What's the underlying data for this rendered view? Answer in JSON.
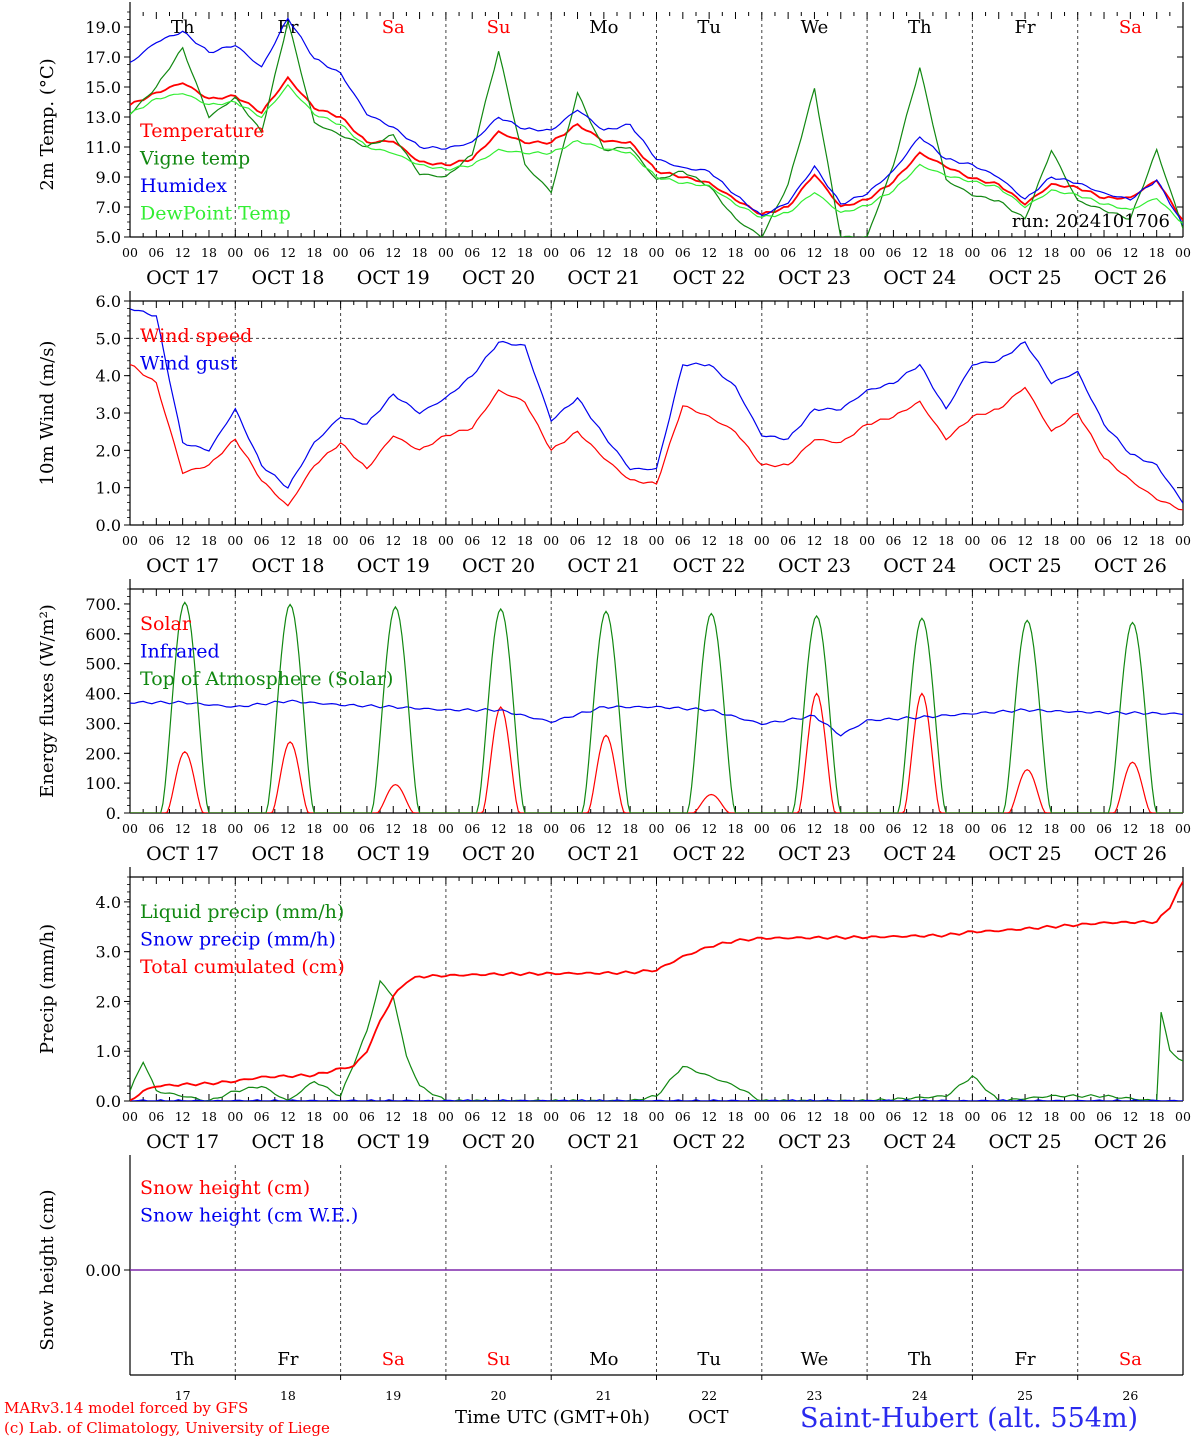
{
  "page": {
    "station": "Saint-Hubert (alt. 554m)",
    "credit_line1": "MARv3.14 model forced by GFS",
    "credit_line2": "(c) Lab. of Climatology, University of Liege",
    "time_axis_label": "Time UTC (GMT+0h)",
    "month_label": "OCT",
    "run_label": "run: 2024101706",
    "hour_ticks": [
      "00",
      "06",
      "12",
      "18"
    ],
    "days": [
      {
        "abbr": "Th",
        "date": "OCT 17",
        "num": "17",
        "weekend": false
      },
      {
        "abbr": "Fr",
        "date": "OCT 18",
        "num": "18",
        "weekend": false
      },
      {
        "abbr": "Sa",
        "date": "OCT 19",
        "num": "19",
        "weekend": true
      },
      {
        "abbr": "Su",
        "date": "OCT 20",
        "num": "20",
        "weekend": true
      },
      {
        "abbr": "Mo",
        "date": "OCT 21",
        "num": "21",
        "weekend": false
      },
      {
        "abbr": "Tu",
        "date": "OCT 22",
        "num": "22",
        "weekend": false
      },
      {
        "abbr": "We",
        "date": "OCT 23",
        "num": "23",
        "weekend": false
      },
      {
        "abbr": "Th",
        "date": "OCT 24",
        "num": "24",
        "weekend": false
      },
      {
        "abbr": "Fr",
        "date": "OCT 25",
        "num": "25",
        "weekend": false
      },
      {
        "abbr": "Sa",
        "date": "OCT 26",
        "num": "26",
        "weekend": true
      }
    ],
    "colors": {
      "red": "#ff0000",
      "green": "#118811",
      "blue": "#0000ee",
      "light_green": "#33ee33",
      "weekend": "#ff0000",
      "snow_line": "#7a1fa8",
      "station": "#2a2aee"
    }
  },
  "chart_data": [
    {
      "type": "line",
      "ylabel": "2m Temp. (°C)",
      "ylim": [
        5.0,
        20.0
      ],
      "yticks": [
        "5.0",
        "7.0",
        "9.0",
        "11.0",
        "13.0",
        "15.0",
        "17.0",
        "19.0"
      ],
      "x_unit": "hours since Oct 17 00 UTC",
      "series": [
        {
          "name": "Temperature",
          "color": "#ff0000",
          "x": [
            0,
            6,
            12,
            18,
            24,
            30,
            36,
            42,
            48,
            54,
            60,
            66,
            72,
            78,
            84,
            90,
            96,
            102,
            108,
            114,
            120,
            126,
            132,
            138,
            144,
            150,
            156,
            162,
            168,
            174,
            180,
            186,
            192,
            198,
            204,
            210,
            216,
            222,
            228,
            234,
            240
          ],
          "y": [
            13.8,
            14.6,
            15.3,
            14.2,
            14.4,
            13.3,
            15.6,
            13.6,
            13.0,
            11.3,
            11.4,
            10.0,
            9.8,
            10.2,
            12.0,
            11.3,
            11.3,
            12.5,
            11.4,
            11.3,
            9.4,
            9.0,
            8.6,
            7.5,
            6.5,
            7.0,
            9.2,
            7.0,
            7.5,
            8.7,
            10.6,
            9.7,
            8.9,
            8.5,
            7.2,
            8.5,
            8.3,
            7.6,
            7.6,
            8.8,
            6.1
          ]
        },
        {
          "name": "Vigne temp",
          "color": "#118811",
          "x": [
            0,
            6,
            12,
            18,
            24,
            30,
            36,
            42,
            48,
            54,
            60,
            66,
            72,
            78,
            84,
            90,
            96,
            102,
            108,
            114,
            120,
            126,
            132,
            138,
            144,
            150,
            156,
            162,
            168,
            174,
            180,
            186,
            192,
            198,
            204,
            210,
            216,
            222,
            228,
            234,
            240
          ],
          "y": [
            13.2,
            15.0,
            17.6,
            13.0,
            14.3,
            12.0,
            19.4,
            12.6,
            11.8,
            11.0,
            11.8,
            9.2,
            9.0,
            10.5,
            17.4,
            9.8,
            8.0,
            14.6,
            10.8,
            11.0,
            8.8,
            9.4,
            8.4,
            6.2,
            5.0,
            8.5,
            14.9,
            5.0,
            5.0,
            9.8,
            16.3,
            8.8,
            7.8,
            7.4,
            6.2,
            10.8,
            7.4,
            6.8,
            6.2,
            10.8,
            5.6
          ]
        },
        {
          "name": "Humidex",
          "color": "#0000ee",
          "x": [
            0,
            6,
            12,
            18,
            24,
            30,
            36,
            42,
            48,
            54,
            60,
            66,
            72,
            78,
            84,
            90,
            96,
            102,
            108,
            114,
            120,
            126,
            132,
            138,
            144,
            150,
            156,
            162,
            168,
            174,
            180,
            186,
            192,
            198,
            204,
            210,
            216,
            222,
            228,
            234,
            240
          ],
          "y": [
            16.6,
            18.0,
            18.7,
            17.3,
            17.8,
            16.3,
            19.6,
            16.9,
            15.9,
            13.2,
            12.3,
            11.0,
            10.9,
            11.3,
            13.0,
            12.2,
            12.1,
            13.5,
            12.1,
            12.5,
            10.2,
            9.6,
            9.4,
            7.8,
            6.4,
            7.3,
            9.7,
            7.2,
            7.9,
            9.4,
            11.7,
            10.2,
            9.8,
            9.0,
            7.5,
            9.0,
            8.6,
            7.9,
            7.5,
            8.8,
            5.8
          ]
        },
        {
          "name": "DewPoint Temp",
          "color": "#33ee33",
          "x": [
            0,
            6,
            12,
            18,
            24,
            30,
            36,
            42,
            48,
            54,
            60,
            66,
            72,
            78,
            84,
            90,
            96,
            102,
            108,
            114,
            120,
            126,
            132,
            138,
            144,
            150,
            156,
            162,
            168,
            174,
            180,
            186,
            192,
            198,
            204,
            210,
            216,
            222,
            228,
            234,
            240
          ],
          "y": [
            13.2,
            14.2,
            14.6,
            13.8,
            14.0,
            13.0,
            15.1,
            13.2,
            12.5,
            11.0,
            10.6,
            9.8,
            9.5,
            9.8,
            10.8,
            10.6,
            10.6,
            11.4,
            10.9,
            10.6,
            9.0,
            8.6,
            8.4,
            7.2,
            6.3,
            6.6,
            8.0,
            6.6,
            7.1,
            8.1,
            9.8,
            9.1,
            8.7,
            8.3,
            7.0,
            8.1,
            7.8,
            7.2,
            6.8,
            7.6,
            5.9
          ]
        }
      ]
    },
    {
      "type": "line",
      "ylabel": "10m Wind (m/s)",
      "ylim": [
        0.0,
        6.0
      ],
      "yticks": [
        "0.0",
        "1.0",
        "2.0",
        "3.0",
        "4.0",
        "5.0",
        "6.0"
      ],
      "reference_line": 5.0,
      "series": [
        {
          "name": "Wind speed",
          "color": "#ff0000",
          "x": [
            0,
            6,
            12,
            18,
            24,
            30,
            36,
            42,
            48,
            54,
            60,
            66,
            72,
            78,
            84,
            90,
            96,
            102,
            108,
            114,
            120,
            126,
            132,
            138,
            144,
            150,
            156,
            162,
            168,
            174,
            180,
            186,
            192,
            198,
            204,
            210,
            216,
            222,
            228,
            234,
            240
          ],
          "y": [
            4.3,
            3.8,
            1.4,
            1.6,
            2.3,
            1.2,
            0.5,
            1.6,
            2.2,
            1.5,
            2.4,
            2.0,
            2.4,
            2.6,
            3.6,
            3.3,
            2.0,
            2.5,
            1.8,
            1.2,
            1.1,
            3.2,
            2.9,
            2.5,
            1.6,
            1.6,
            2.3,
            2.2,
            2.7,
            2.9,
            3.3,
            2.3,
            2.9,
            3.1,
            3.7,
            2.5,
            3.0,
            1.8,
            1.2,
            0.7,
            0.4
          ]
        },
        {
          "name": "Wind gust",
          "color": "#0000ee",
          "x": [
            0,
            6,
            12,
            18,
            24,
            30,
            36,
            42,
            48,
            54,
            60,
            66,
            72,
            78,
            84,
            90,
            96,
            102,
            108,
            114,
            120,
            126,
            132,
            138,
            144,
            150,
            156,
            162,
            168,
            174,
            180,
            186,
            192,
            198,
            204,
            210,
            216,
            222,
            228,
            234,
            240
          ],
          "y": [
            5.8,
            5.6,
            2.2,
            2.0,
            3.1,
            1.6,
            1.0,
            2.2,
            2.9,
            2.7,
            3.5,
            3.0,
            3.4,
            4.0,
            4.9,
            4.8,
            2.8,
            3.4,
            2.4,
            1.5,
            1.5,
            4.3,
            4.3,
            3.7,
            2.4,
            2.3,
            3.1,
            3.1,
            3.6,
            3.8,
            4.3,
            3.1,
            4.3,
            4.4,
            4.9,
            3.8,
            4.1,
            2.7,
            1.9,
            1.6,
            0.6
          ]
        }
      ]
    },
    {
      "type": "line",
      "ylabel": "Energy fluxes (W/m²)",
      "ylim": [
        0,
        750
      ],
      "yticks": [
        "0.",
        "100.",
        "200.",
        "300.",
        "400.",
        "500.",
        "600.",
        "700."
      ],
      "series": [
        {
          "name": "Solar",
          "color": "#ff0000",
          "peaks": [
            {
              "day": 0,
              "peak": 205
            },
            {
              "day": 1,
              "peak": 238
            },
            {
              "day": 2,
              "peak": 95
            },
            {
              "day": 3,
              "peak": 355
            },
            {
              "day": 4,
              "peak": 260
            },
            {
              "day": 5,
              "peak": 62
            },
            {
              "day": 6,
              "peak": 400
            },
            {
              "day": 7,
              "peak": 400
            },
            {
              "day": 8,
              "peak": 145
            },
            {
              "day": 9,
              "peak": 170
            }
          ]
        },
        {
          "name": "Infrared",
          "color": "#0000ee",
          "x": [
            0,
            12,
            24,
            36,
            48,
            60,
            72,
            84,
            96,
            108,
            120,
            132,
            144,
            156,
            162,
            168,
            180,
            192,
            204,
            216,
            228,
            240
          ],
          "y": [
            370,
            370,
            355,
            375,
            362,
            355,
            345,
            345,
            305,
            355,
            355,
            345,
            298,
            325,
            260,
            310,
            320,
            333,
            345,
            338,
            335,
            332
          ]
        },
        {
          "name": "Top of Atmosphere (Solar)",
          "color": "#118811",
          "peaks": [
            {
              "day": 0,
              "peak": 705
            },
            {
              "day": 1,
              "peak": 698
            },
            {
              "day": 2,
              "peak": 690
            },
            {
              "day": 3,
              "peak": 683
            },
            {
              "day": 4,
              "peak": 675
            },
            {
              "day": 5,
              "peak": 668
            },
            {
              "day": 6,
              "peak": 660
            },
            {
              "day": 7,
              "peak": 652
            },
            {
              "day": 8,
              "peak": 645
            },
            {
              "day": 9,
              "peak": 638
            }
          ]
        }
      ]
    },
    {
      "type": "line",
      "ylabel": "Precip (mm/h)",
      "ylim": [
        0.0,
        4.5
      ],
      "yticks": [
        "0.0",
        "1.0",
        "2.0",
        "3.0",
        "4.0"
      ],
      "series": [
        {
          "name": "Liquid precip (mm/h)",
          "color": "#118811",
          "x": [
            0,
            3,
            6,
            12,
            18,
            24,
            30,
            36,
            42,
            48,
            54,
            57,
            60,
            63,
            66,
            72,
            96,
            114,
            120,
            126,
            132,
            138,
            144,
            168,
            186,
            192,
            198,
            210,
            222,
            234,
            235,
            237,
            240
          ],
          "y": [
            0.2,
            0.8,
            0.2,
            0.1,
            0.0,
            0.2,
            0.3,
            0.0,
            0.4,
            0.1,
            1.4,
            2.4,
            2.1,
            0.9,
            0.3,
            0.0,
            0.0,
            0.0,
            0.1,
            0.7,
            0.5,
            0.3,
            0.0,
            0.0,
            0.1,
            0.5,
            0.0,
            0.1,
            0.1,
            0.0,
            1.8,
            1.0,
            0.8
          ]
        },
        {
          "name": "Snow precip (mm/h)",
          "color": "#0000ee",
          "x": [
            0,
            240
          ],
          "y": [
            0.0,
            0.0
          ]
        },
        {
          "name": "Total cumulated (cm)",
          "color": "#ff0000",
          "x": [
            0,
            3,
            6,
            12,
            18,
            24,
            30,
            36,
            42,
            48,
            51,
            54,
            57,
            60,
            63,
            66,
            72,
            84,
            96,
            108,
            114,
            120,
            126,
            132,
            138,
            144,
            168,
            186,
            192,
            198,
            210,
            222,
            234,
            237,
            240
          ],
          "y": [
            0.0,
            0.2,
            0.3,
            0.33,
            0.35,
            0.4,
            0.48,
            0.5,
            0.52,
            0.65,
            0.7,
            1.0,
            1.6,
            2.1,
            2.4,
            2.5,
            2.52,
            2.55,
            2.56,
            2.57,
            2.58,
            2.63,
            2.9,
            3.1,
            3.22,
            3.27,
            3.29,
            3.33,
            3.4,
            3.42,
            3.5,
            3.58,
            3.6,
            3.9,
            4.4
          ]
        }
      ]
    },
    {
      "type": "line",
      "ylabel": "Snow height (cm)",
      "yticks": [
        "0.00"
      ],
      "series": [
        {
          "name": "Snow height (cm)",
          "color": "#ff0000",
          "x": [
            0,
            240
          ],
          "y": [
            0.0,
            0.0
          ]
        },
        {
          "name": "Snow height (cm W.E.)",
          "color": "#0000ee",
          "x": [
            0,
            240
          ],
          "y": [
            0.0,
            0.0
          ]
        }
      ]
    }
  ]
}
